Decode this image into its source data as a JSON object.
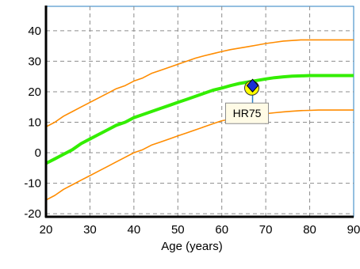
{
  "chart_data": {
    "type": "line",
    "title": "",
    "xlabel": "Age (years)",
    "ylabel": "",
    "xlim": [
      20,
      90
    ],
    "ylim": [
      -21,
      48
    ],
    "x_ticks": [
      20,
      30,
      40,
      50,
      60,
      70,
      80,
      90
    ],
    "y_ticks": [
      -20,
      -10,
      0,
      10,
      20,
      30,
      40
    ],
    "grid": true,
    "x": [
      20,
      22,
      24,
      26,
      28,
      30,
      32,
      34,
      36,
      38,
      40,
      42,
      44,
      46,
      48,
      50,
      52,
      54,
      56,
      58,
      60,
      62,
      64,
      66,
      68,
      70,
      72,
      74,
      76,
      78,
      80,
      82,
      84,
      86,
      88,
      90
    ],
    "series": [
      {
        "color": "#ff8c00",
        "values": [
          8.5,
          10,
          12,
          13.5,
          15,
          16.5,
          18,
          19.5,
          21,
          22,
          23.5,
          24.5,
          26,
          27,
          28,
          29,
          30,
          31,
          31.8,
          32.5,
          33.2,
          33.8,
          34.3,
          34.8,
          35.3,
          35.8,
          36.2,
          36.6,
          36.8,
          37,
          37,
          37,
          37,
          37,
          37,
          37
        ]
      },
      {
        "color": "#33ee00",
        "values": [
          -3.5,
          -2,
          -0.5,
          1,
          3,
          4.5,
          6,
          7.5,
          9,
          10,
          11.5,
          12.5,
          13.5,
          14.5,
          15.5,
          16.5,
          17.5,
          18.5,
          19.5,
          20.5,
          21.2,
          22,
          22.7,
          23.2,
          23.7,
          24.2,
          24.6,
          24.9,
          25.1,
          25.2,
          25.3,
          25.3,
          25.3,
          25.3,
          25.3,
          25.3
        ]
      },
      {
        "color": "#ff8c00",
        "values": [
          -15.5,
          -14,
          -12,
          -10.5,
          -9,
          -7.5,
          -6,
          -4.5,
          -3,
          -1.5,
          0,
          1,
          2.5,
          3.5,
          4.5,
          5.5,
          6.5,
          7.5,
          8.5,
          9.5,
          10.5,
          11,
          11.5,
          12,
          12.4,
          12.8,
          13.1,
          13.4,
          13.6,
          13.8,
          13.9,
          14,
          14,
          14,
          14,
          14
        ]
      }
    ],
    "marker": {
      "x": 67,
      "y": 22,
      "label": "HR75"
    },
    "colors": {
      "plot_border": "#2a7fc0",
      "grid": "#8c8c8c",
      "connector": "#2a7fc0",
      "marker_fill": "#1a2fd6",
      "marker_circle": "#ffff00",
      "label_bg": "#fffbe6",
      "label_border": "#8c8c8c"
    }
  }
}
